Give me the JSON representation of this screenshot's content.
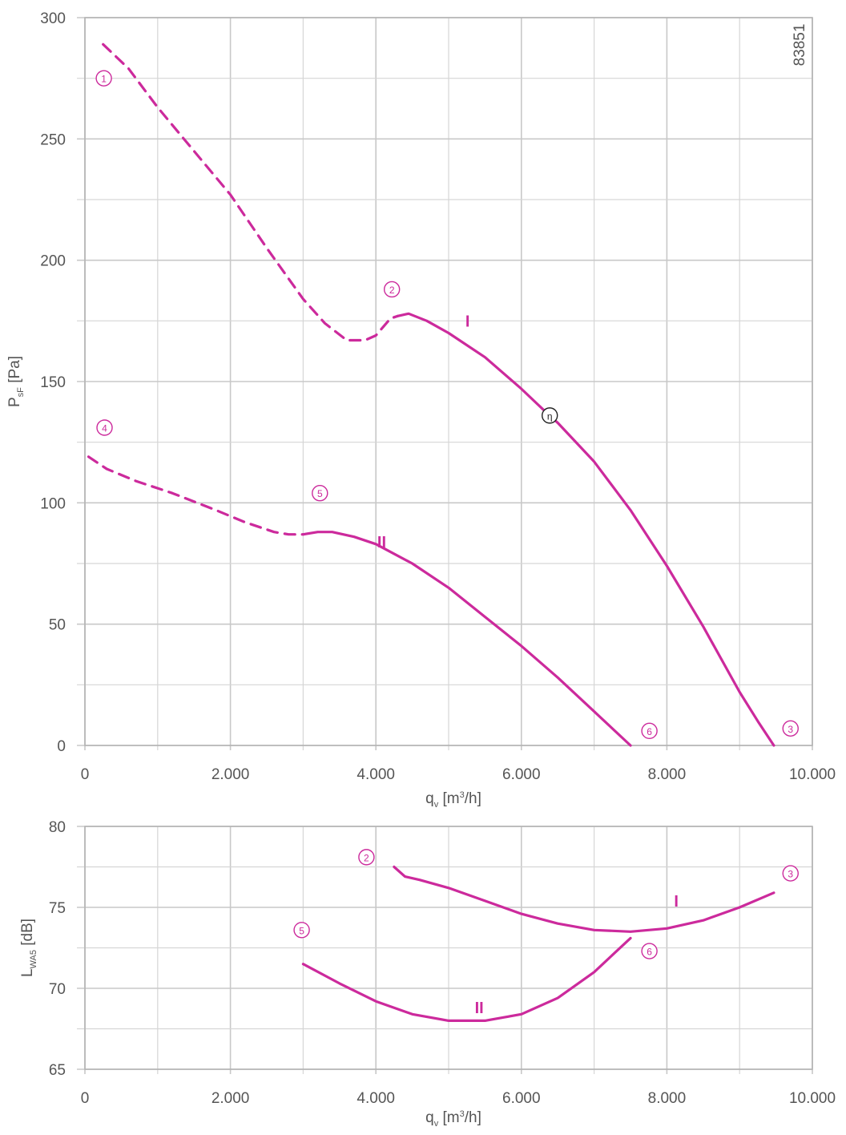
{
  "colors": {
    "curve": "#cc2a9c",
    "grid": "#c8c8c8",
    "text": "#555555",
    "eta": "#222222"
  },
  "chart_data": [
    {
      "type": "line",
      "id": "pressure",
      "figure_number": "83851",
      "xlabel": {
        "base": "q",
        "sub": "v",
        "unit_pre": " [m",
        "sup": "3",
        "unit_post": "/h]"
      },
      "ylabel": {
        "base": "P",
        "sub": "sF",
        "unit": " [Pa]"
      },
      "xlim": [
        0,
        10000
      ],
      "ylim": [
        0,
        300
      ],
      "x_ticks": [
        0,
        2000,
        4000,
        6000,
        8000,
        10000
      ],
      "x_tick_labels": [
        "0",
        "2.000",
        "4.000",
        "6.000",
        "8.000",
        "10.000"
      ],
      "y_ticks": [
        0,
        50,
        100,
        150,
        200,
        250,
        300
      ],
      "y_tick_labels": [
        "0",
        "50",
        "100",
        "150",
        "200",
        "250",
        "300"
      ],
      "grid": true,
      "series": [
        {
          "name": "I",
          "dashed": {
            "x": [
              250,
              600,
              1000,
              1500,
              2000,
              2500,
              3000,
              3300,
              3600,
              3850,
              4000,
              4200,
              4300
            ],
            "y": [
              289,
              279,
              263,
              245,
              227,
              205,
              184,
              174,
              167,
              167,
              169,
              176,
              177
            ]
          },
          "solid": {
            "x": [
              4300,
              4450,
              4700,
              5000,
              5500,
              6000,
              6350,
              6500,
              7000,
              7500,
              8000,
              8500,
              9000,
              9250,
              9470
            ],
            "y": [
              177,
              178,
              175,
              170,
              160,
              147,
              137,
              133,
              117,
              97,
              74,
              49,
              22,
              10,
              0
            ]
          }
        },
        {
          "name": "II",
          "dashed": {
            "x": [
              50,
              300,
              700,
              1200,
              1800,
              2200,
              2600,
              2800,
              3000
            ],
            "y": [
              119,
              114,
              109,
              104,
              97,
              92,
              88,
              87,
              87
            ]
          },
          "solid": {
            "x": [
              3000,
              3200,
              3400,
              3700,
              4000,
              4500,
              5000,
              5500,
              6000,
              6500,
              7000,
              7500
            ],
            "y": [
              87,
              88,
              88,
              86,
              83,
              75,
              65,
              53,
              41,
              28,
              14,
              0
            ]
          }
        }
      ],
      "markers": [
        {
          "label": "1",
          "x": 260,
          "y": 275
        },
        {
          "label": "2",
          "x": 4220,
          "y": 188
        },
        {
          "label": "3",
          "x": 9700,
          "y": 7
        },
        {
          "label": "4",
          "x": 270,
          "y": 131
        },
        {
          "label": "5",
          "x": 3230,
          "y": 104
        },
        {
          "label": "6",
          "x": 7760,
          "y": 6
        },
        {
          "label": "η",
          "x": 6390,
          "y": 136,
          "dark": true
        }
      ],
      "curve_labels": [
        {
          "label": "I",
          "x": 5260,
          "y": 175
        },
        {
          "label": "II",
          "x": 4080,
          "y": 84
        }
      ]
    },
    {
      "type": "line",
      "id": "sound",
      "xlabel": {
        "base": "q",
        "sub": "v",
        "unit_pre": " [m",
        "sup": "3",
        "unit_post": "/h]"
      },
      "ylabel": {
        "base": "L",
        "sub": "WA5",
        "unit": " [dB]"
      },
      "xlim": [
        0,
        10000
      ],
      "ylim": [
        65,
        80
      ],
      "x_ticks": [
        0,
        2000,
        4000,
        6000,
        8000,
        10000
      ],
      "x_tick_labels": [
        "0",
        "2.000",
        "4.000",
        "6.000",
        "8.000",
        "10.000"
      ],
      "y_ticks": [
        65,
        70,
        75,
        80
      ],
      "y_tick_labels": [
        "65",
        "70",
        "75",
        "80"
      ],
      "grid": true,
      "series": [
        {
          "name": "I",
          "solid": {
            "x": [
              4250,
              4400,
              4600,
              5000,
              5500,
              6000,
              6500,
              7000,
              7500,
              8000,
              8500,
              9000,
              9470
            ],
            "y": [
              77.5,
              76.9,
              76.7,
              76.2,
              75.4,
              74.6,
              74.0,
              73.6,
              73.5,
              73.7,
              74.2,
              75.0,
              75.9
            ]
          }
        },
        {
          "name": "II",
          "solid": {
            "x": [
              3000,
              3500,
              4000,
              4500,
              5000,
              5500,
              6000,
              6500,
              7000,
              7500
            ],
            "y": [
              71.5,
              70.3,
              69.2,
              68.4,
              68.0,
              68.0,
              68.4,
              69.4,
              71.0,
              73.1
            ]
          }
        }
      ],
      "markers": [
        {
          "label": "2",
          "x": 3870,
          "y": 78.1
        },
        {
          "label": "3",
          "x": 9700,
          "y": 77.1
        },
        {
          "label": "5",
          "x": 2980,
          "y": 73.6
        },
        {
          "label": "6",
          "x": 7760,
          "y": 72.3
        }
      ],
      "curve_labels": [
        {
          "label": "I",
          "x": 8130,
          "y": 75.4
        },
        {
          "label": "II",
          "x": 5420,
          "y": 68.8
        }
      ]
    }
  ]
}
